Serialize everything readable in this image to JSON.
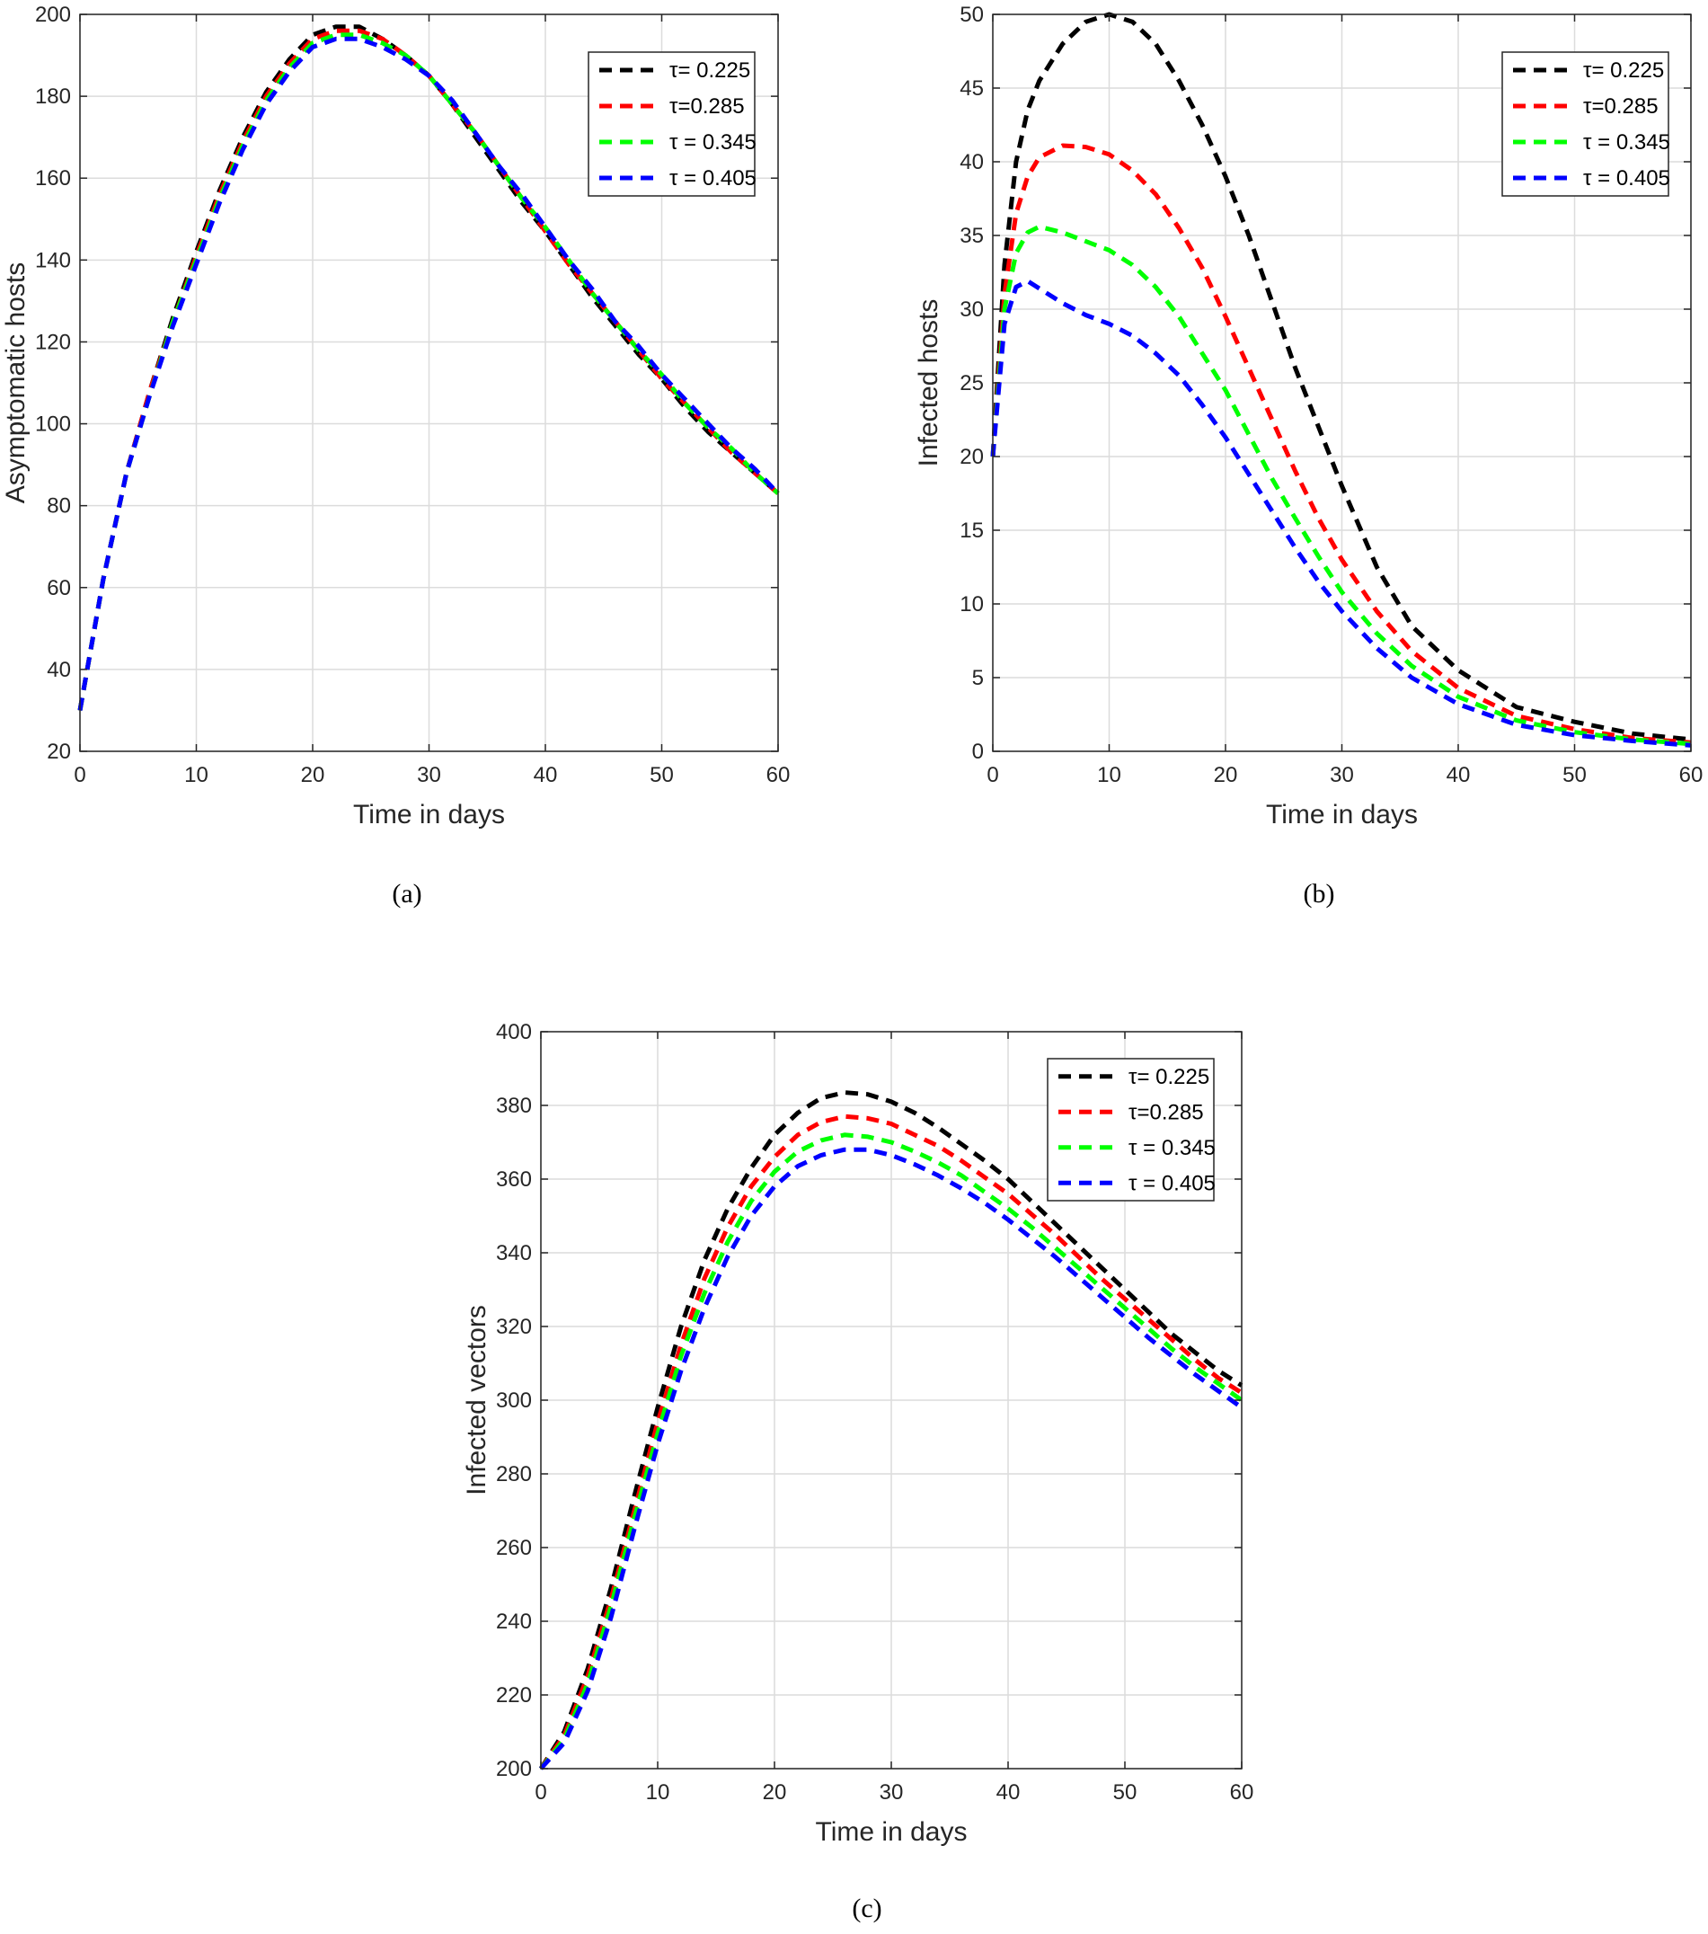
{
  "captions": [
    "(a)",
    "(b)",
    "(c)"
  ],
  "colors": {
    "tau_0_225": "#000000",
    "tau_0_285": "#ff0000",
    "tau_0_345": "#00ff00",
    "tau_0_405": "#0000ff"
  },
  "chart_data": [
    {
      "type": "line",
      "caption": "(a)",
      "xlabel": "Time in days",
      "ylabel": "Asymptomatic  hosts",
      "xlim": [
        0,
        60
      ],
      "ylim": [
        20,
        200
      ],
      "xticks": [
        0,
        10,
        20,
        30,
        40,
        50,
        60
      ],
      "yticks": [
        20,
        40,
        60,
        80,
        100,
        120,
        140,
        160,
        180,
        200
      ],
      "grid": true,
      "legend_position": "top-right",
      "x": [
        0,
        2,
        4,
        6,
        8,
        10,
        12,
        14,
        16,
        18,
        20,
        22,
        24,
        26,
        28,
        30,
        32,
        34,
        36,
        38,
        40,
        42,
        44,
        46,
        48,
        50,
        52,
        54,
        56,
        58,
        60
      ],
      "series": [
        {
          "name": "τ= 0.225",
          "color": "#000000",
          "values": [
            30,
            62,
            88,
            108,
            126,
            142,
            157,
            170,
            181,
            189,
            195,
            197,
            197,
            194,
            190,
            185,
            178,
            170,
            162,
            154,
            147,
            139,
            131,
            124,
            117,
            111,
            104,
            98,
            93,
            88,
            83
          ]
        },
        {
          "name": "τ=0.285",
          "color": "#ff0000",
          "values": [
            30,
            62,
            88,
            108,
            125,
            141,
            156,
            169,
            180,
            188,
            194,
            196,
            196,
            194,
            190,
            185,
            178,
            171,
            163,
            155,
            147,
            139,
            132,
            125,
            118,
            111,
            105,
            99,
            93,
            88,
            83
          ]
        },
        {
          "name": "τ = 0.345",
          "color": "#00ff00",
          "values": [
            30,
            62,
            88,
            107,
            125,
            140,
            155,
            168,
            179,
            187,
            193,
            195,
            195,
            193,
            190,
            185,
            178,
            171,
            163,
            155,
            148,
            140,
            132,
            125,
            118,
            112,
            105,
            99,
            94,
            88,
            83
          ]
        },
        {
          "name": "τ = 0.405",
          "color": "#0000ff",
          "values": [
            30,
            62,
            88,
            107,
            124,
            139,
            154,
            167,
            178,
            186,
            192,
            194,
            194,
            192,
            189,
            185,
            179,
            171,
            163,
            156,
            148,
            140,
            133,
            125,
            119,
            112,
            106,
            100,
            94,
            89,
            83
          ]
        }
      ]
    },
    {
      "type": "line",
      "caption": "(b)",
      "xlabel": "Time in days",
      "ylabel": "Infected hosts",
      "xlim": [
        0,
        60
      ],
      "ylim": [
        0,
        50
      ],
      "xticks": [
        0,
        10,
        20,
        30,
        40,
        50,
        60
      ],
      "yticks": [
        0,
        5,
        10,
        15,
        20,
        25,
        30,
        35,
        40,
        45,
        50
      ],
      "grid": true,
      "legend_position": "top-right",
      "x": [
        0,
        1,
        2,
        3,
        4,
        6,
        8,
        10,
        12,
        14,
        16,
        18,
        20,
        22,
        24,
        26,
        28,
        30,
        33,
        36,
        40,
        45,
        50,
        55,
        60
      ],
      "series": [
        {
          "name": "τ= 0.225",
          "color": "#000000",
          "values": [
            20,
            33,
            40,
            43.5,
            45.5,
            48,
            49.5,
            50,
            49.5,
            48,
            45.5,
            42.5,
            39,
            35,
            30.5,
            26,
            22,
            18,
            12.5,
            8.5,
            5.5,
            3,
            2,
            1.2,
            0.8
          ]
        },
        {
          "name": "τ=0.285",
          "color": "#ff0000",
          "values": [
            20,
            31,
            36.5,
            39,
            40.3,
            41.1,
            41,
            40.5,
            39.4,
            37.8,
            35.5,
            32.8,
            29.5,
            26,
            22.5,
            19,
            15.8,
            13,
            9.5,
            6.8,
            4.3,
            2.4,
            1.5,
            0.9,
            0.6
          ]
        },
        {
          "name": "τ = 0.345",
          "color": "#00ff00",
          "values": [
            20,
            30,
            33.8,
            35.2,
            35.6,
            35.2,
            34.6,
            34,
            33,
            31.5,
            29.5,
            27,
            24.5,
            21.5,
            18.5,
            15.8,
            13.2,
            10.8,
            8,
            5.8,
            3.7,
            2.1,
            1.3,
            0.8,
            0.5
          ]
        },
        {
          "name": "τ = 0.405",
          "color": "#0000ff",
          "values": [
            20,
            29,
            31.5,
            31.9,
            31.4,
            30.4,
            29.6,
            29,
            28.2,
            27,
            25.5,
            23.5,
            21.3,
            18.8,
            16.3,
            13.8,
            11.5,
            9.5,
            7,
            5,
            3.2,
            1.8,
            1.1,
            0.7,
            0.4
          ]
        }
      ]
    },
    {
      "type": "line",
      "caption": "(c)",
      "xlabel": "Time in days",
      "ylabel": "Infected vectors",
      "xlim": [
        0,
        60
      ],
      "ylim": [
        200,
        400
      ],
      "xticks": [
        0,
        10,
        20,
        30,
        40,
        50,
        60
      ],
      "yticks": [
        200,
        220,
        240,
        260,
        280,
        300,
        320,
        340,
        360,
        380,
        400
      ],
      "grid": true,
      "legend_position": "top-right",
      "x": [
        0,
        2,
        4,
        6,
        8,
        10,
        12,
        14,
        16,
        18,
        20,
        22,
        24,
        26,
        28,
        30,
        32,
        34,
        36,
        38,
        40,
        42,
        44,
        46,
        48,
        50,
        52,
        54,
        56,
        58,
        60
      ],
      "series": [
        {
          "name": "τ= 0.225",
          "color": "#000000",
          "values": [
            200,
            210,
            227,
            249,
            274,
            298,
            320,
            338,
            352,
            363,
            372,
            378,
            382,
            383.5,
            383,
            381,
            378,
            374,
            369.5,
            365,
            360,
            354,
            348,
            342,
            336,
            330,
            324,
            318,
            313,
            308,
            304
          ]
        },
        {
          "name": "τ=0.285",
          "color": "#ff0000",
          "values": [
            200,
            209,
            225,
            246,
            270,
            294,
            315,
            333,
            347,
            358,
            366,
            372,
            375.5,
            377,
            376.5,
            375,
            372,
            369,
            365,
            360.5,
            356,
            350.5,
            345,
            339,
            333,
            327.5,
            322,
            316.5,
            311,
            306,
            302
          ]
        },
        {
          "name": "τ = 0.345",
          "color": "#00ff00",
          "values": [
            200,
            208,
            223,
            244,
            268,
            291,
            312,
            329,
            343,
            354,
            362,
            367.5,
            370.5,
            372,
            371.5,
            370,
            367.5,
            364.5,
            361,
            356.5,
            352,
            347,
            341.5,
            336,
            330.5,
            325,
            319.5,
            314,
            309,
            304.5,
            300
          ]
        },
        {
          "name": "τ = 0.405",
          "color": "#0000ff",
          "values": [
            200,
            207,
            221,
            241,
            265,
            288,
            308,
            325,
            339,
            350,
            358,
            363.5,
            366.5,
            368,
            368,
            366.5,
            364,
            361,
            357.5,
            353.5,
            349,
            344,
            339,
            333.5,
            328,
            322.5,
            317,
            312,
            307,
            302.5,
            298
          ]
        }
      ]
    }
  ]
}
